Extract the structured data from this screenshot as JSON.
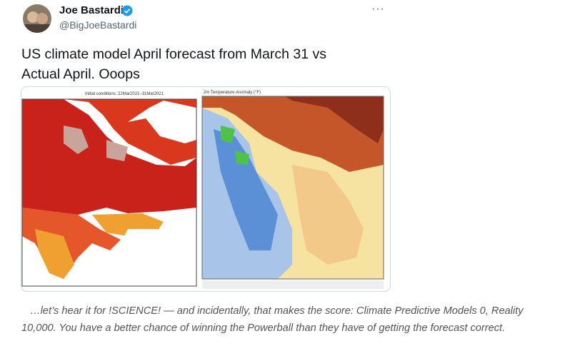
{
  "user": {
    "name": "Joe Bastardi",
    "handle": "@BigJoeBastardi"
  },
  "tweet": {
    "lines": [
      "US climate model April forecast from March 31  vs",
      "Actual April. Ooops"
    ]
  },
  "media": {
    "forecast_label": "Initial conditions: 22Mar2021–31Mar2021",
    "observed_label": "2m Temperature Anomaly (°F)"
  },
  "caption": {
    "lines": [
      "…let’s hear it for !SCIENCE! — and incidentally, that makes the score:  Climate Predictive Models 0, Reality",
      "10,000.  You have a better chance of winning the Powerball than they have of getting the forecast correct."
    ]
  }
}
